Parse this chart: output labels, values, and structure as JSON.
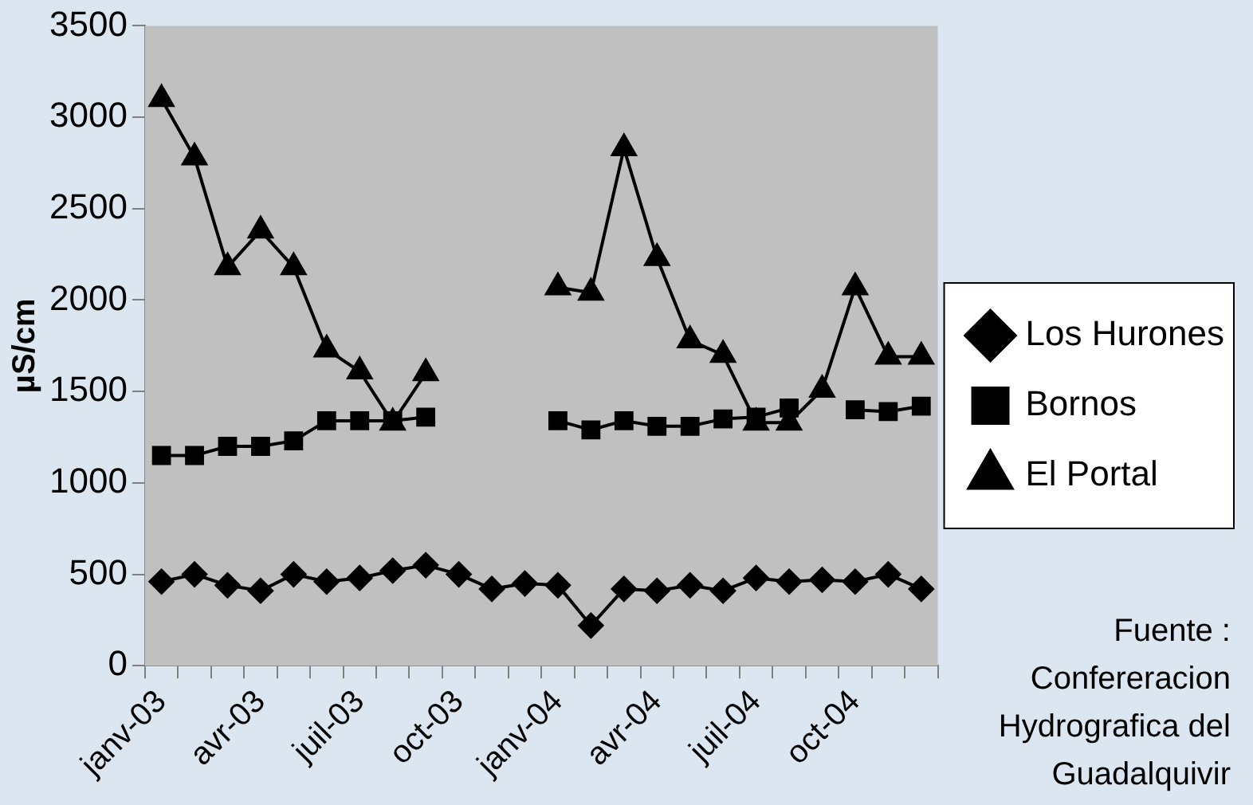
{
  "chart_data": {
    "type": "line",
    "ylabel": "µS/cm",
    "categories": [
      "janv-03",
      null,
      null,
      "avr-03",
      null,
      null,
      "juil-03",
      null,
      null,
      "oct-03",
      null,
      null,
      "janv-04",
      null,
      null,
      "avr-04",
      null,
      null,
      "juil-04",
      null,
      null,
      "oct-04",
      null,
      null
    ],
    "series": [
      {
        "name": "Los Hurones",
        "color": "#000000",
        "marker": "diamond",
        "values": [
          460,
          500,
          440,
          410,
          500,
          460,
          480,
          520,
          550,
          500,
          420,
          450,
          440,
          220,
          420,
          410,
          440,
          410,
          480,
          460,
          470,
          460,
          500,
          420
        ]
      },
      {
        "name": "Bornos",
        "color": "#000000",
        "marker": "square",
        "values": [
          1150,
          1150,
          1200,
          1200,
          1230,
          1340,
          1340,
          1340,
          1360,
          null,
          null,
          null,
          1340,
          1290,
          1340,
          1310,
          1310,
          1350,
          1360,
          1410,
          null,
          1400,
          1390,
          1420
        ]
      },
      {
        "name": "El Portal",
        "color": "#000000",
        "marker": "triangle",
        "values": [
          3100,
          2780,
          2180,
          2380,
          2180,
          1730,
          1610,
          1330,
          1600,
          null,
          null,
          null,
          2070,
          2040,
          2830,
          2230,
          1780,
          1700,
          1330,
          1330,
          1510,
          2070,
          1690,
          1690
        ]
      }
    ],
    "ylim": [
      0,
      3500
    ],
    "yticks": [
      0,
      500,
      1000,
      1500,
      2000,
      2500,
      3000,
      3500
    ],
    "grid": false,
    "legend": "right",
    "annotations": [
      "Fuente : Confereracion Hydrografica del Guadalquivir"
    ]
  }
}
